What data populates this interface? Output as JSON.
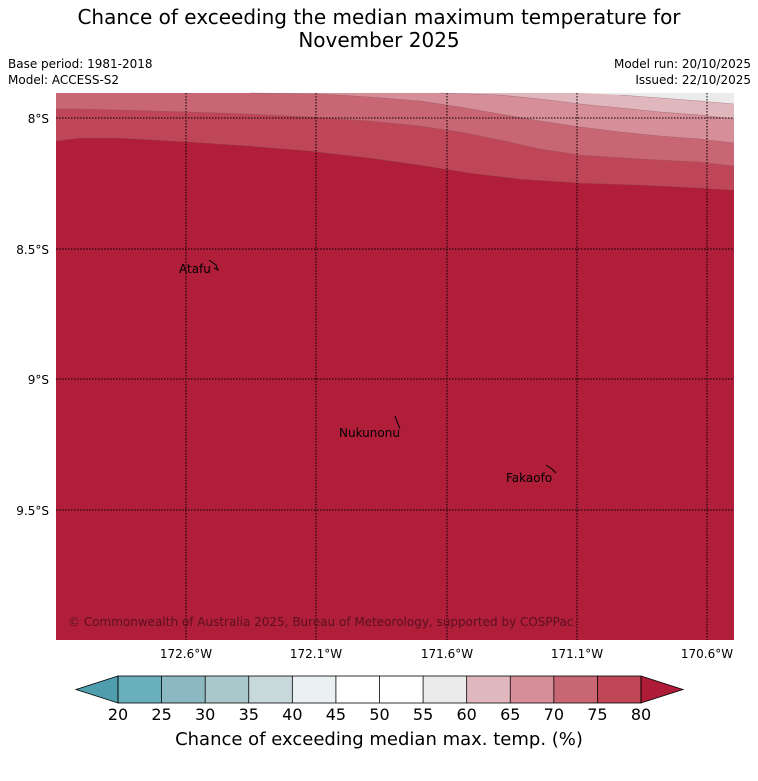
{
  "header": {
    "title_line1": "Chance of exceeding the median maximum temperature for",
    "title_line2": "November 2025",
    "base_period": "Base period: 1981-2018",
    "model": "Model: ACCESS-S2",
    "model_run": "Model run: 20/10/2025",
    "issued": "Issued: 22/10/2025"
  },
  "map": {
    "lat_labels": [
      "8°S",
      "8.5°S",
      "9°S",
      "9.5°S"
    ],
    "lon_labels": [
      "172.6°W",
      "172.1°W",
      "171.6°W",
      "171.1°W",
      "170.6°W"
    ],
    "places": [
      {
        "name": "Atafu"
      },
      {
        "name": "Nukunonu"
      },
      {
        "name": "Fakaofo"
      }
    ],
    "copyright": "© Commonwealth of Australia 2025, Bureau of Meteorology, supported by COSPPac",
    "fill_color": "#b01e3a"
  },
  "colorbar": {
    "ticks": [
      "20",
      "25",
      "30",
      "35",
      "40",
      "45",
      "50",
      "55",
      "60",
      "65",
      "70",
      "75",
      "80"
    ],
    "colors": [
      "#68aebb",
      "#8cb8c2",
      "#aac7cc",
      "#c8d9dc",
      "#eaf0f1",
      "#ffffff",
      "#ffffff",
      "#ebebeb",
      "#e0b7bc",
      "#d68e98",
      "#c96673",
      "#bf4656"
    ],
    "under_color": "#4f9eae",
    "over_color": "#ae1c38",
    "label": "Chance of exceeding median max. temp. (%)"
  }
}
